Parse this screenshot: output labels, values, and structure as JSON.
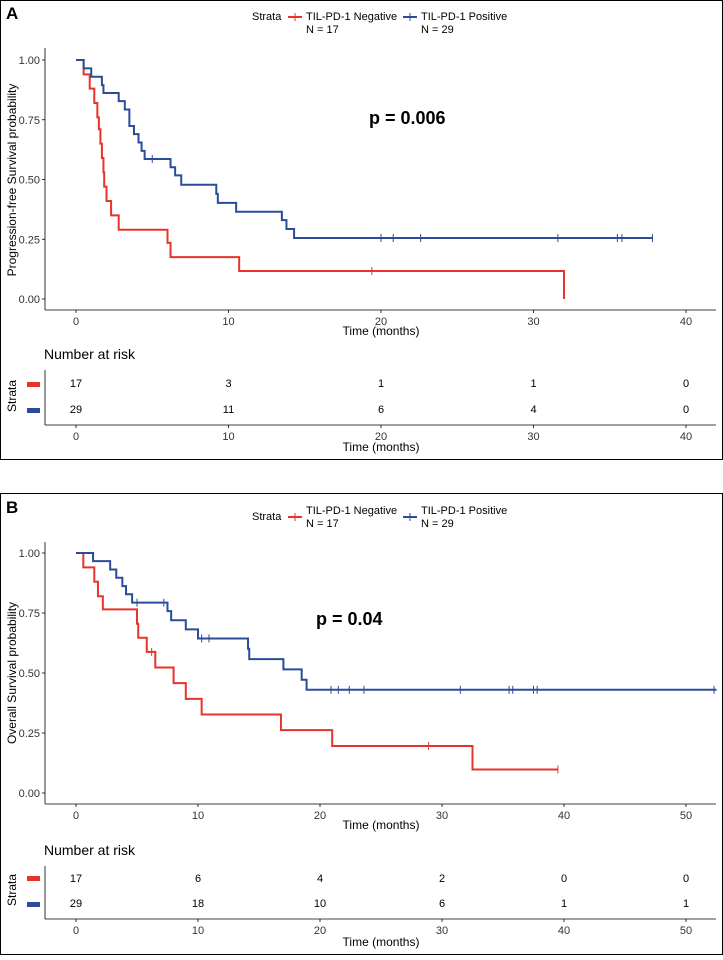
{
  "colors": {
    "negative": "#E8332A",
    "positive": "#2A4C9A"
  },
  "chart_data": [
    {
      "id": "A",
      "type": "line",
      "panel_label": "A",
      "ylabel": "Progression-free Survival probability",
      "xlabel": "Time (months)",
      "xlim": [
        0,
        42
      ],
      "ylim": [
        0,
        1
      ],
      "x_ticks": [
        0,
        10,
        20,
        30,
        40
      ],
      "y_ticks": [
        "0.00",
        "0.25",
        "0.50",
        "0.75",
        "1.00"
      ],
      "p_value": "p = 0.006",
      "legend": {
        "title": "Strata",
        "entries": [
          [
            "TIL-PD-1 Negative",
            "N = 17"
          ],
          [
            "TIL-PD-1 Positive",
            "N = 29"
          ]
        ]
      },
      "series": [
        {
          "name": "TIL-PD-1 Negative",
          "color": "#E8332A",
          "steps": [
            [
              0,
              1.0
            ],
            [
              0.5,
              0.94
            ],
            [
              0.9,
              0.88
            ],
            [
              1.2,
              0.82
            ],
            [
              1.4,
              0.76
            ],
            [
              1.5,
              0.71
            ],
            [
              1.6,
              0.65
            ],
            [
              1.7,
              0.59
            ],
            [
              1.8,
              0.53
            ],
            [
              1.85,
              0.47
            ],
            [
              2.0,
              0.41
            ],
            [
              2.3,
              0.35
            ],
            [
              2.8,
              0.29
            ],
            [
              6.0,
              0.235
            ],
            [
              6.2,
              0.175
            ],
            [
              10.7,
              0.117
            ],
            [
              32.0,
              0.0
            ]
          ],
          "end": 32.0,
          "censors": [
            19.4
          ]
        },
        {
          "name": "TIL-PD-1 Positive",
          "color": "#2A4C9A",
          "steps": [
            [
              0,
              1.0
            ],
            [
              0.5,
              0.965
            ],
            [
              1.0,
              0.93
            ],
            [
              1.7,
              0.895
            ],
            [
              1.8,
              0.862
            ],
            [
              2.8,
              0.828
            ],
            [
              3.2,
              0.793
            ],
            [
              3.5,
              0.758
            ],
            [
              3.5,
              0.724
            ],
            [
              3.8,
              0.69
            ],
            [
              4.1,
              0.655
            ],
            [
              4.3,
              0.62
            ],
            [
              4.5,
              0.586
            ],
            [
              6.2,
              0.551
            ],
            [
              6.5,
              0.517
            ],
            [
              6.9,
              0.478
            ],
            [
              9.2,
              0.44
            ],
            [
              9.3,
              0.402
            ],
            [
              10.5,
              0.365
            ],
            [
              13.5,
              0.33
            ],
            [
              13.8,
              0.293
            ],
            [
              14.3,
              0.255
            ]
          ],
          "end": 37.8,
          "censors": [
            5.0,
            20.0,
            20.8,
            22.6,
            31.6,
            35.5,
            35.8,
            37.8
          ]
        }
      ],
      "risk_table": {
        "title": "Number at risk",
        "strata_label": "Strata",
        "times": [
          "0",
          "10",
          "20",
          "30",
          "40"
        ],
        "rows": [
          {
            "name": "TIL-PD-1 Negative",
            "color": "#E8332A",
            "values": [
              "17",
              "3",
              "1",
              "1",
              "0"
            ]
          },
          {
            "name": "TIL-PD-1 Positive",
            "color": "#2A4C9A",
            "values": [
              "29",
              "11",
              "6",
              "4",
              "0"
            ]
          }
        ],
        "xlabel": "Time (months)"
      }
    },
    {
      "id": "B",
      "type": "line",
      "panel_label": "B",
      "ylabel": "Overall Survival probability",
      "xlabel": "Time (months)",
      "xlim": [
        0,
        52.5
      ],
      "ylim": [
        0,
        1
      ],
      "x_ticks": [
        0,
        10,
        20,
        30,
        40,
        50
      ],
      "y_ticks": [
        "0.00",
        "0.25",
        "0.50",
        "0.75",
        "1.00"
      ],
      "p_value": "p = 0.04",
      "legend": {
        "title": "Strata",
        "entries": [
          [
            "TIL-PD-1 Negative",
            "N = 17"
          ],
          [
            "TIL-PD-1 Positive",
            "N = 29"
          ]
        ]
      },
      "series": [
        {
          "name": "TIL-PD-1 Negative",
          "color": "#E8332A",
          "steps": [
            [
              0,
              1.0
            ],
            [
              0.6,
              0.94
            ],
            [
              1.5,
              0.88
            ],
            [
              1.8,
              0.82
            ],
            [
              2.2,
              0.765
            ],
            [
              5.0,
              0.705
            ],
            [
              5.1,
              0.647
            ],
            [
              5.8,
              0.588
            ],
            [
              6.5,
              0.523
            ],
            [
              8.0,
              0.458
            ],
            [
              9.0,
              0.392
            ],
            [
              10.3,
              0.327
            ],
            [
              16.8,
              0.262
            ],
            [
              21.0,
              0.196
            ],
            [
              32.5,
              0.098
            ]
          ],
          "end": 39.5,
          "censors": [
            6.2,
            28.9,
            39.5
          ]
        },
        {
          "name": "TIL-PD-1 Positive",
          "color": "#2A4C9A",
          "steps": [
            [
              0,
              1.0
            ],
            [
              1.4,
              0.966
            ],
            [
              2.8,
              0.931
            ],
            [
              3.3,
              0.897
            ],
            [
              3.8,
              0.862
            ],
            [
              4.1,
              0.828
            ],
            [
              4.6,
              0.793
            ],
            [
              7.5,
              0.758
            ],
            [
              7.8,
              0.72
            ],
            [
              9.0,
              0.682
            ],
            [
              10.0,
              0.644
            ],
            [
              14.1,
              0.601
            ],
            [
              14.2,
              0.558
            ],
            [
              17.0,
              0.515
            ],
            [
              18.5,
              0.472
            ],
            [
              18.9,
              0.43
            ]
          ],
          "end": 52.5,
          "censors": [
            5.0,
            7.2,
            10.3,
            10.9,
            20.9,
            21.5,
            22.4,
            23.6,
            31.5,
            35.5,
            35.8,
            37.5,
            37.8,
            52.3
          ]
        }
      ],
      "risk_table": {
        "title": "Number at risk",
        "strata_label": "Strata",
        "times": [
          "0",
          "10",
          "20",
          "30",
          "40",
          "50"
        ],
        "rows": [
          {
            "name": "TIL-PD-1 Negative",
            "color": "#E8332A",
            "values": [
              "17",
              "6",
              "4",
              "2",
              "0",
              "0"
            ]
          },
          {
            "name": "TIL-PD-1 Positive",
            "color": "#2A4C9A",
            "values": [
              "29",
              "18",
              "10",
              "6",
              "1",
              "1"
            ]
          }
        ],
        "xlabel": "Time (months)"
      }
    }
  ]
}
